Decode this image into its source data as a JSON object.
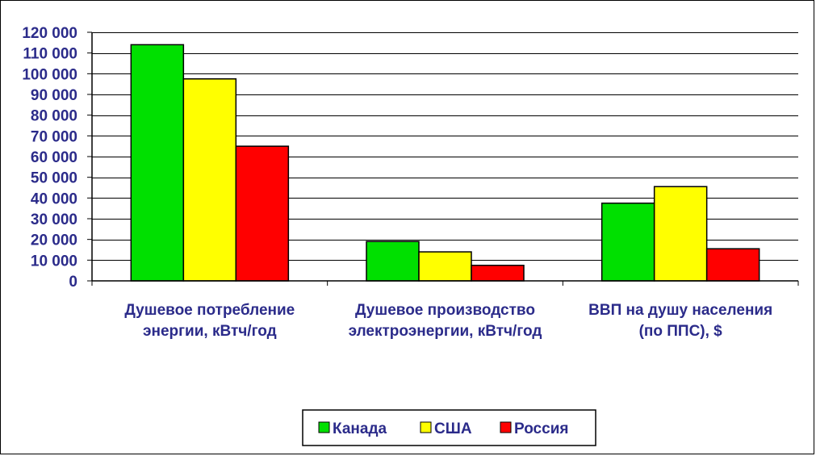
{
  "chart_data": {
    "type": "bar",
    "categories": [
      [
        "Душевое потребление",
        "энергии, кВтч/год"
      ],
      [
        "Душевое производство",
        "электроэнергии, кВтч/год"
      ],
      [
        "ВВП на душу населения",
        "(по ППС), $"
      ]
    ],
    "series": [
      {
        "name": "Канада",
        "color": "#00e000",
        "values": [
          114000,
          19000,
          37500
        ]
      },
      {
        "name": "США",
        "color": "#ffff00",
        "values": [
          97500,
          14000,
          45500
        ]
      },
      {
        "name": "Россия",
        "color": "#ff0000",
        "values": [
          65000,
          7500,
          15500
        ]
      }
    ],
    "ylim": [
      0,
      120000
    ],
    "ytick_step": 10000,
    "yticks": [
      "0",
      "10 000",
      "20 000",
      "30 000",
      "40 000",
      "50 000",
      "60 000",
      "70 000",
      "80 000",
      "90 000",
      "100 000",
      "110 000",
      "120 000"
    ],
    "grid": true,
    "legend_position": "bottom-center",
    "title": "",
    "xlabel": "",
    "ylabel": ""
  }
}
